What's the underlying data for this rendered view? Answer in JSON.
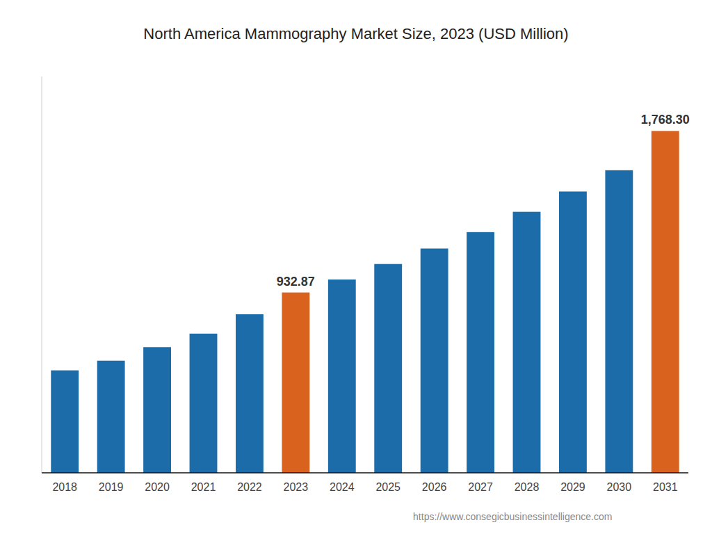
{
  "chart_data": {
    "type": "bar",
    "title": "North America Mammography Market Size, 2023 (USD Million)",
    "categories": [
      "2018",
      "2019",
      "2020",
      "2021",
      "2022",
      "2023",
      "2024",
      "2025",
      "2026",
      "2027",
      "2028",
      "2029",
      "2030",
      "2031"
    ],
    "values": [
      530,
      580,
      650,
      720,
      820,
      932.87,
      1000,
      1080,
      1160,
      1245,
      1350,
      1455,
      1565,
      1768.3
    ],
    "value_labels": [
      null,
      null,
      null,
      null,
      null,
      "932.87",
      null,
      null,
      null,
      null,
      null,
      null,
      null,
      "1,768.30"
    ],
    "colors": [
      "#1b6ca8",
      "#1b6ca8",
      "#1b6ca8",
      "#1b6ca8",
      "#1b6ca8",
      "#d9621e",
      "#1b6ca8",
      "#1b6ca8",
      "#1b6ca8",
      "#1b6ca8",
      "#1b6ca8",
      "#1b6ca8",
      "#1b6ca8",
      "#d9621e"
    ],
    "ylim": [
      0,
      2050
    ],
    "tick_labels": "x",
    "grid": false,
    "annotations": [
      "https://www.consegicbusinessintelligence.com"
    ]
  }
}
